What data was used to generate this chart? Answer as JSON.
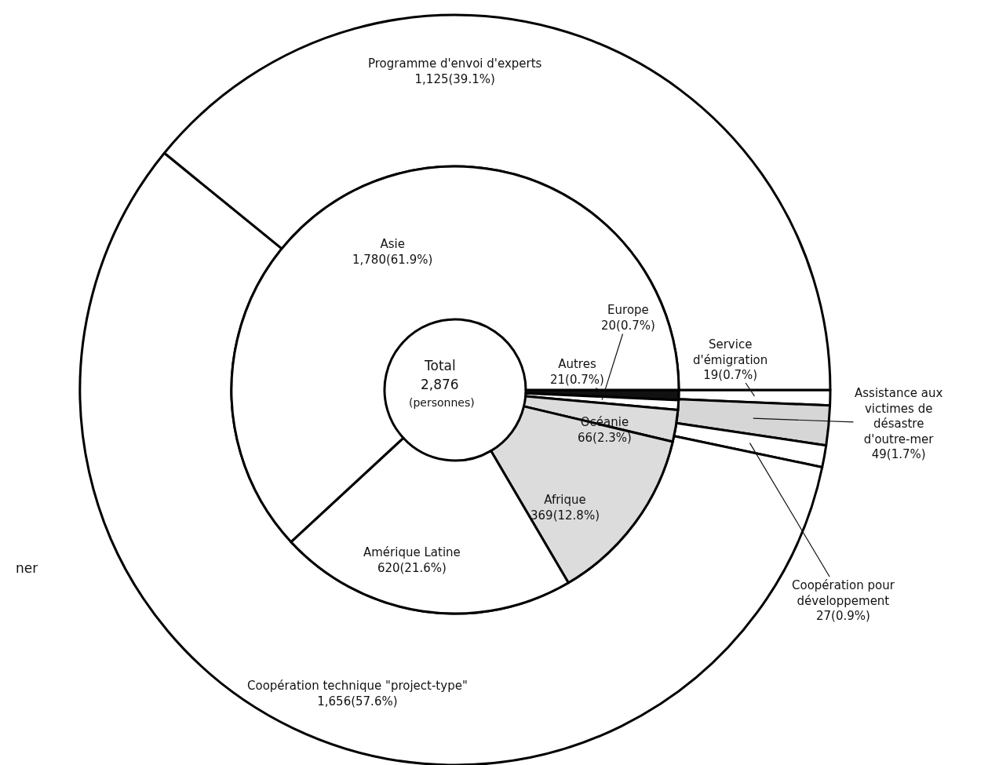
{
  "chart_data": [
    {
      "type": "donut",
      "categories": [
        "Service d'émigration",
        "Assistance aux victimes de désastre d'outre-mer",
        "Coopération pour développement",
        "Coopération technique \"project-type\"",
        "Programme d'envoi d'experts"
      ],
      "values": [
        19,
        49,
        27,
        1656,
        1125
      ],
      "colors": [
        "#ffffff",
        "#d6d6d6",
        "#ffffff",
        "#ffffff",
        "#ffffff"
      ],
      "value_labels": [
        "19(0.7%)",
        "49(1.7%)",
        "27(0.9%)",
        "1,656(57.6%)",
        "1,125(39.1%)"
      ],
      "annotations": [
        "ner"
      ],
      "legend": false
    },
    {
      "type": "donut",
      "title": "Total",
      "annotations": [
        "2,876",
        "(personnes)"
      ],
      "categories": [
        "Autres",
        "Europe",
        "Océanie",
        "Afrique",
        "Amérique Latine",
        "Asie"
      ],
      "values": [
        21,
        20,
        66,
        369,
        620,
        1780
      ],
      "colors": [
        "#111111",
        "#ffffff",
        "#dcdcdc",
        "#dcdcdc",
        "#ffffff",
        "#ffffff"
      ],
      "value_labels": [
        "21(0.7%)",
        "20(0.7%)",
        "66(2.3%)",
        "369(12.8%)",
        "620(21.6%)",
        "1,780(61.9%)"
      ],
      "legend": false
    }
  ]
}
